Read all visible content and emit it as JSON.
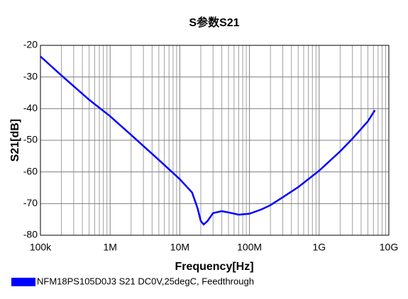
{
  "chart_data": {
    "type": "line",
    "title": "S参数S21",
    "x_label": "Frequency[Hz]",
    "y_label": "S21[dB]",
    "x_scale": "log",
    "grid": true,
    "minor_grid": true,
    "legend": "bottom-left",
    "x": [
      100000,
      200000,
      500000,
      1000000,
      2000000,
      5000000,
      10000000,
      15000000,
      18000000,
      20000000,
      22000000,
      25000000,
      30000000,
      40000000,
      50000000,
      70000000,
      100000000,
      150000000,
      200000000,
      300000000,
      500000000,
      1000000000,
      2000000000,
      3000000000,
      5000000000,
      6300000000
    ],
    "series": [
      {
        "name": "NFM18PS105D0J3 S21 DC0V,25degC, Feedthrough",
        "color": "#0000ff",
        "values": [
          -23.5,
          -29.5,
          -37.2,
          -42.4,
          -48.3,
          -56.2,
          -62.3,
          -66.5,
          -71.5,
          -75.5,
          -76.6,
          -75.5,
          -73.0,
          -72.4,
          -72.8,
          -73.5,
          -73.2,
          -71.8,
          -70.5,
          -68.0,
          -64.8,
          -59.6,
          -53.5,
          -49.5,
          -44.0,
          -40.5
        ]
      }
    ],
    "xlim": [
      100000,
      10000000000
    ],
    "xticks": [
      {
        "value": 100000,
        "label": "100k"
      },
      {
        "value": 1000000,
        "label": "1M"
      },
      {
        "value": 10000000,
        "label": "10M"
      },
      {
        "value": 100000000,
        "label": "100M"
      },
      {
        "value": 1000000000,
        "label": "1G"
      },
      {
        "value": 10000000000,
        "label": "10G"
      }
    ],
    "ylim": [
      -80,
      -20
    ],
    "yticks": [
      -20,
      -30,
      -40,
      -50,
      -60,
      -70,
      -80
    ]
  }
}
